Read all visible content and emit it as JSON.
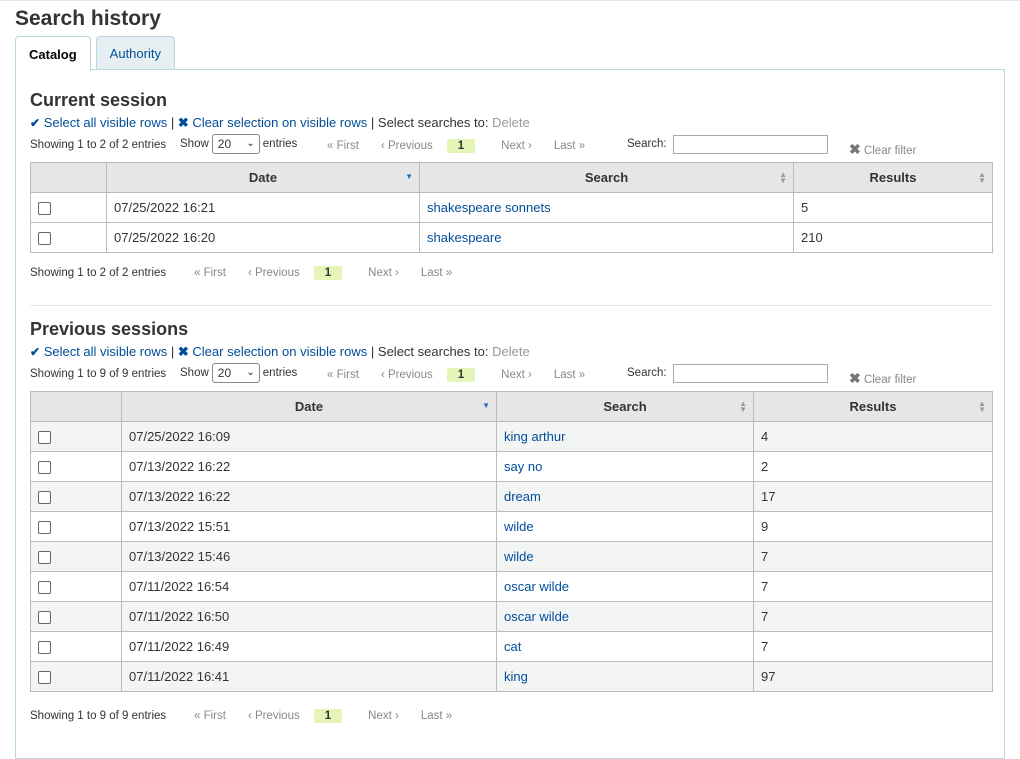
{
  "page_title": "Search history",
  "tabs": [
    {
      "label": "Catalog",
      "active": true
    },
    {
      "label": "Authority",
      "active": false
    }
  ],
  "selection": {
    "select_all": "Select all visible rows",
    "separator": "|",
    "clear_selection": "Clear selection on visible rows",
    "select_to": "Select searches to:",
    "delete": "Delete"
  },
  "datatable_controls": {
    "show": "Show",
    "entries": "entries",
    "length_value": "20",
    "search_label": "Search:",
    "clear_filter": "Clear filter",
    "first": "First",
    "previous": "Previous",
    "next": "Next",
    "last": "Last",
    "page": "1"
  },
  "columns": {
    "date": "Date",
    "search": "Search",
    "results": "Results"
  },
  "current_session": {
    "heading": "Current session",
    "info": "Showing 1 to 2 of 2 entries",
    "rows": [
      {
        "date": "07/25/2022 16:21",
        "search": "shakespeare sonnets",
        "results": "5"
      },
      {
        "date": "07/25/2022 16:20",
        "search": "shakespeare",
        "results": "210"
      }
    ]
  },
  "previous_sessions": {
    "heading": "Previous sessions",
    "info": "Showing 1 to 9 of 9 entries",
    "rows": [
      {
        "date": "07/25/2022 16:09",
        "search": "king arthur",
        "results": "4"
      },
      {
        "date": "07/13/2022 16:22",
        "search": "say no",
        "results": "2"
      },
      {
        "date": "07/13/2022 16:22",
        "search": "dream",
        "results": "17"
      },
      {
        "date": "07/13/2022 15:51",
        "search": "wilde",
        "results": "9"
      },
      {
        "date": "07/13/2022 15:46",
        "search": "wilde",
        "results": "7"
      },
      {
        "date": "07/11/2022 16:54",
        "search": "oscar wilde",
        "results": "7"
      },
      {
        "date": "07/11/2022 16:50",
        "search": "oscar wilde",
        "results": "7"
      },
      {
        "date": "07/11/2022 16:49",
        "search": "cat",
        "results": "7"
      },
      {
        "date": "07/11/2022 16:41",
        "search": "king",
        "results": "97"
      }
    ]
  },
  "colors": {
    "link": "#004d99",
    "active_page_bg": "#e5f4b7",
    "tab_border": "#b9d8d9",
    "header_bg": "#e6e6e6"
  }
}
